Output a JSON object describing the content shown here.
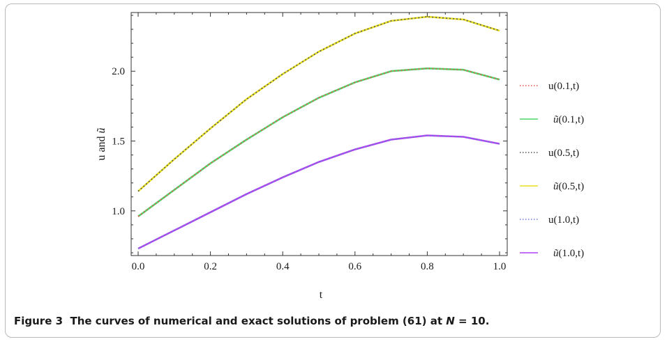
{
  "caption": {
    "figure_label": "Figure 3",
    "text_before": "The curves of numerical and exact solutions of problem (61) at ",
    "n_symbol": "N",
    "text_after": " = 10."
  },
  "chart_data": {
    "type": "line",
    "xlabel": "t",
    "ylabel_parts": [
      "u and ",
      "ũ"
    ],
    "xlim": [
      0.0,
      1.0
    ],
    "ylim": [
      0.68,
      2.42
    ],
    "xticks": [
      "0.0",
      "0.2",
      "0.4",
      "0.6",
      "0.8",
      "1.0"
    ],
    "yticks": [
      "1.0",
      "1.5",
      "2.0"
    ],
    "x": [
      0.0,
      0.1,
      0.2,
      0.3,
      0.4,
      0.5,
      0.6,
      0.7,
      0.8,
      0.9,
      1.0
    ],
    "series": [
      {
        "name": "u(0.1,t)",
        "base": "u",
        "arg": "(0.1,t)",
        "color": "#e8504a",
        "style": "dotted",
        "values": [
          0.96,
          1.15,
          1.34,
          1.51,
          1.67,
          1.81,
          1.92,
          2.0,
          2.02,
          2.01,
          1.94
        ]
      },
      {
        "name": "ũ(0.1,t)",
        "base": "ũ",
        "arg": "(0.1,t)",
        "color": "#4fd56a",
        "style": "solid",
        "values": [
          0.96,
          1.15,
          1.34,
          1.51,
          1.67,
          1.81,
          1.92,
          2.0,
          2.02,
          2.01,
          1.94
        ]
      },
      {
        "name": "u(0.5,t)",
        "base": "u",
        "arg": "(0.5,t)",
        "color": "#555555",
        "style": "dotted",
        "values": [
          1.14,
          1.37,
          1.59,
          1.8,
          1.98,
          2.14,
          2.27,
          2.36,
          2.39,
          2.37,
          2.29
        ]
      },
      {
        "name": "ũ(0.5,t)",
        "base": "ũ",
        "arg": "(0.5,t)",
        "color": "#e8e020",
        "style": "solid",
        "values": [
          1.14,
          1.37,
          1.59,
          1.8,
          1.98,
          2.14,
          2.27,
          2.36,
          2.39,
          2.37,
          2.29
        ]
      },
      {
        "name": "u(1.0,t)",
        "base": "u",
        "arg": "(1.0,t)",
        "color": "#6f7fd8",
        "style": "dotted",
        "values": [
          0.73,
          0.86,
          0.99,
          1.12,
          1.24,
          1.35,
          1.44,
          1.51,
          1.54,
          1.53,
          1.48
        ]
      },
      {
        "name": "ũ(1.0,t)",
        "base": "ũ",
        "arg": "(1.0,t)",
        "color": "#b040f0",
        "style": "solid",
        "values": [
          0.73,
          0.86,
          0.99,
          1.12,
          1.24,
          1.35,
          1.44,
          1.51,
          1.54,
          1.53,
          1.48
        ]
      }
    ],
    "legend_position": "right",
    "grid": false
  }
}
